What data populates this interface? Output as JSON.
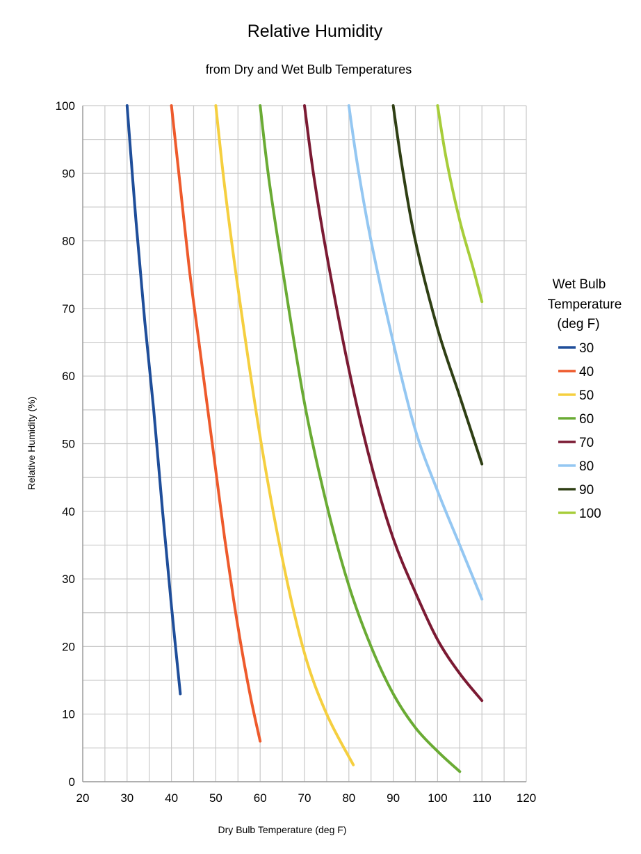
{
  "chart_data": {
    "type": "line",
    "title": "Relative Humidity",
    "subtitle": "from Dry and Wet Bulb Temperatures",
    "xlabel": "Dry Bulb Temperature (deg F)",
    "ylabel": "Relative Humidity (%)",
    "xlim": [
      20,
      120
    ],
    "ylim": [
      0,
      100
    ],
    "x_ticks": [
      20,
      30,
      40,
      50,
      60,
      70,
      80,
      90,
      100,
      110,
      120
    ],
    "y_ticks": [
      0,
      10,
      20,
      30,
      40,
      50,
      60,
      70,
      80,
      90,
      100
    ],
    "grid": true,
    "legend": {
      "title_lines": [
        "Wet Bulb",
        "Temperature",
        "(deg F)"
      ],
      "position": "right"
    },
    "series": [
      {
        "name": "30",
        "color": "#1f4e9a",
        "x": [
          30,
          32,
          34,
          36,
          38,
          40,
          42
        ],
        "y": [
          100,
          83,
          68,
          55,
          40,
          26,
          13
        ]
      },
      {
        "name": "40",
        "color": "#ee5a2c",
        "x": [
          40,
          42,
          44,
          46,
          48,
          50,
          52,
          54,
          56,
          58,
          60
        ],
        "y": [
          100,
          88,
          76,
          66,
          56,
          46,
          36,
          27,
          19,
          12,
          6
        ]
      },
      {
        "name": "50",
        "color": "#f5cf3f",
        "x": [
          50,
          52,
          55,
          60,
          65,
          70,
          75,
          81
        ],
        "y": [
          100,
          88,
          73,
          51,
          33,
          19,
          10,
          2.5
        ]
      },
      {
        "name": "60",
        "color": "#6aab34",
        "x": [
          60,
          62,
          65,
          70,
          75,
          80,
          85,
          90,
          95,
          100,
          105
        ],
        "y": [
          100,
          89,
          76,
          56,
          41,
          29,
          20,
          13,
          8,
          4.5,
          1.5
        ]
      },
      {
        "name": "70",
        "color": "#7b1a33",
        "x": [
          70,
          72,
          75,
          80,
          85,
          90,
          95,
          100,
          105,
          110
        ],
        "y": [
          100,
          90,
          78,
          61,
          47,
          36,
          28,
          21,
          16,
          12
        ]
      },
      {
        "name": "80",
        "color": "#94c7f2",
        "x": [
          80,
          82,
          85,
          90,
          95,
          100,
          105,
          110
        ],
        "y": [
          100,
          91,
          80,
          65,
          52,
          43,
          35,
          27
        ]
      },
      {
        "name": "90",
        "color": "#2f3f14",
        "x": [
          90,
          92,
          95,
          100,
          105,
          110
        ],
        "y": [
          100,
          91,
          80,
          67,
          57,
          47
        ]
      },
      {
        "name": "100",
        "color": "#a7cd3a",
        "x": [
          100,
          102,
          105,
          108,
          110
        ],
        "y": [
          100,
          92,
          83,
          76,
          71
        ]
      }
    ]
  }
}
